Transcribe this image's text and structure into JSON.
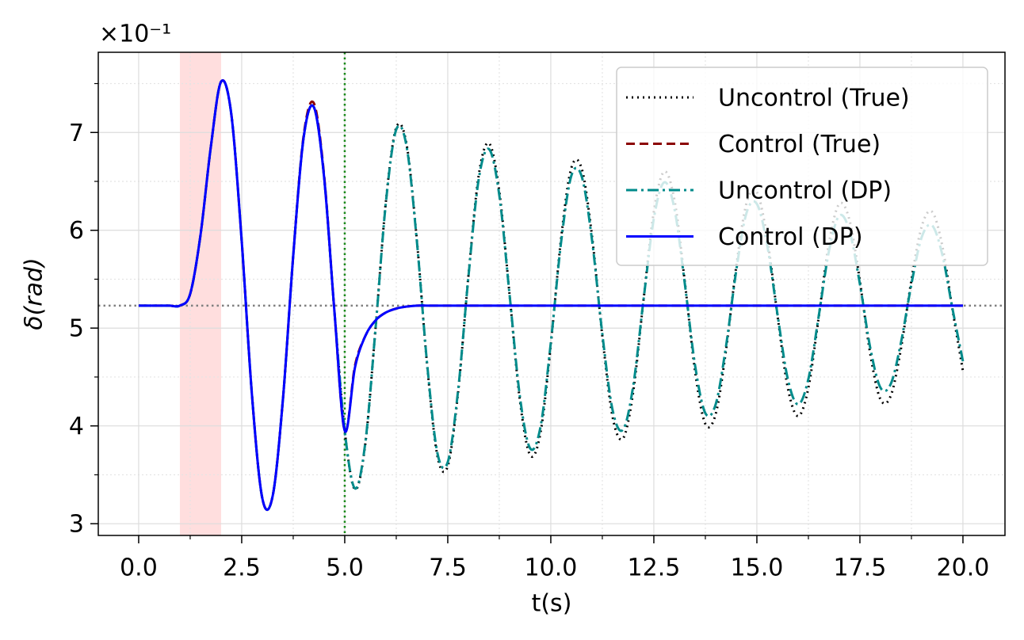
{
  "chart_data": {
    "type": "line",
    "offset_label": "×10⁻¹",
    "xlabel": "t(s)",
    "ylabel": "δ(rad)",
    "xlim": [
      -0.98,
      21.02
    ],
    "ylim": [
      2.88,
      7.82
    ],
    "xticks": [
      {
        "value": 0,
        "label": "0.0"
      },
      2.5,
      {
        "value": 5,
        "label": "5.0"
      },
      7.5,
      {
        "value": 10,
        "label": "10.0"
      },
      12.5,
      {
        "value": 15,
        "label": "15.0"
      },
      17.5,
      {
        "value": 20,
        "label": "20.0"
      }
    ],
    "yticks": [
      3,
      4,
      5,
      6,
      7
    ],
    "xminor": [
      1.25,
      3.75,
      6.25,
      8.75,
      11.25,
      13.75,
      16.25,
      18.75
    ],
    "yminor": [
      3.5,
      4.5,
      5.5,
      6.5,
      7.5
    ],
    "grid": true,
    "legend": "upper right",
    "spans": [
      {
        "range": [
          1,
          2
        ],
        "color": "#ffdede"
      }
    ],
    "vlines": [
      {
        "x": 5,
        "color": "#1a8a1a"
      }
    ],
    "hlines": [
      {
        "y": 5.23,
        "color": "#808080"
      }
    ],
    "x": [
      0,
      0.25,
      0.5,
      0.75,
      1,
      1.25,
      1.5,
      1.75,
      2,
      2.25,
      2.5,
      2.75,
      3,
      3.25,
      3.5,
      3.75,
      4,
      4.25,
      4.5,
      4.75,
      5,
      5.25,
      5.5,
      5.75,
      6,
      6.25,
      6.5,
      6.75,
      7,
      7.25,
      7.5,
      7.75,
      8,
      8.25,
      8.5,
      8.75,
      9,
      9.25,
      9.5,
      9.75,
      10,
      10.25,
      10.5,
      10.75,
      11,
      11.25,
      11.5,
      11.75,
      12,
      12.25,
      12.5,
      12.75,
      13,
      13.25,
      13.5,
      13.75,
      14,
      14.25,
      14.5,
      14.75,
      15,
      15.25,
      15.5,
      15.75,
      16,
      16.25,
      16.5,
      16.75,
      17,
      17.25,
      17.5,
      17.75,
      18,
      18.25,
      18.5,
      18.75,
      19,
      19.25,
      19.5,
      19.75,
      20
    ],
    "series": [
      {
        "name": "Uncontrol (True)",
        "color": "#000000",
        "linestyle": "dotted",
        "values": [
          5.23,
          5.23,
          5.23,
          5.23,
          5.23,
          5.35,
          5.95,
          6.85,
          7.52,
          7.18,
          5.89,
          4.31,
          3.26,
          3.28,
          4.27,
          5.74,
          6.94,
          7.26,
          6.54,
          5.17,
          3.95,
          3.35,
          3.82,
          5.01,
          6.3,
          7.05,
          6.88,
          5.9,
          4.62,
          3.69,
          3.59,
          4.34,
          5.53,
          6.56,
          6.89,
          6.4,
          5.34,
          4.26,
          3.7,
          3.93,
          4.83,
          5.92,
          6.64,
          6.63,
          5.94,
          4.92,
          4.09,
          3.87,
          4.35,
          5.29,
          6.19,
          6.6,
          6.31,
          5.48,
          4.56,
          4.02,
          4.12,
          4.77,
          5.63,
          6.28,
          6.39,
          5.92,
          5.13,
          4.39,
          4.1,
          4.39,
          5.11,
          5.87,
          6.27,
          6.1,
          5.48,
          4.74,
          4.27,
          4.31,
          4.8,
          5.49,
          6.04,
          6.19,
          5.84,
          5.18,
          4.56
        ]
      },
      {
        "name": "Control (True)",
        "color": "#8b0000",
        "linestyle": "dashed",
        "values": [
          5.23,
          5.23,
          5.23,
          5.23,
          5.23,
          5.35,
          5.95,
          6.85,
          7.52,
          7.18,
          5.89,
          4.31,
          3.26,
          3.28,
          4.27,
          5.74,
          6.96,
          7.3,
          6.56,
          5.17,
          3.95,
          4.62,
          4.92,
          5.08,
          5.16,
          5.2,
          5.22,
          5.23,
          5.23,
          5.23,
          5.23,
          5.23,
          5.23,
          5.23,
          5.23,
          5.23,
          5.23,
          5.23,
          5.23,
          5.23,
          5.23,
          5.23,
          5.23,
          5.23,
          5.23,
          5.23,
          5.23,
          5.23,
          5.23,
          5.23,
          5.23,
          5.23,
          5.23,
          5.23,
          5.23,
          5.23,
          5.23,
          5.23,
          5.23,
          5.23,
          5.23,
          5.23,
          5.23,
          5.23,
          5.23,
          5.23,
          5.23,
          5.23,
          5.23,
          5.23,
          5.23,
          5.23,
          5.23,
          5.23,
          5.23,
          5.23,
          5.23,
          5.23,
          5.23,
          5.23,
          5.23
        ]
      },
      {
        "name": "Uncontrol (DP)",
        "color": "#008b8b",
        "linestyle": "dashdot",
        "values": [
          5.23,
          5.23,
          5.23,
          5.23,
          5.23,
          5.35,
          5.95,
          6.85,
          7.52,
          7.18,
          5.89,
          4.31,
          3.26,
          3.28,
          4.27,
          5.74,
          6.94,
          7.26,
          6.54,
          5.17,
          3.95,
          3.36,
          3.83,
          5.01,
          6.29,
          7.03,
          6.86,
          5.89,
          4.63,
          3.72,
          3.63,
          4.36,
          5.52,
          6.52,
          6.83,
          6.36,
          5.34,
          4.3,
          3.77,
          3.99,
          4.85,
          5.88,
          6.56,
          6.55,
          5.9,
          4.94,
          4.16,
          3.96,
          4.41,
          5.29,
          6.12,
          6.49,
          6.22,
          5.46,
          4.62,
          4.13,
          4.22,
          4.81,
          5.59,
          6.18,
          6.27,
          5.85,
          5.14,
          4.48,
          4.22,
          4.48,
          5.12,
          5.79,
          6.15,
          5.99,
          5.45,
          4.8,
          4.39,
          4.43,
          4.86,
          5.45,
          5.93,
          6.05,
          5.75,
          5.19,
          4.66
        ]
      },
      {
        "name": "Control (DP)",
        "color": "#0000ff",
        "linestyle": "solid",
        "values": [
          5.23,
          5.23,
          5.23,
          5.23,
          5.23,
          5.35,
          5.95,
          6.85,
          7.52,
          7.18,
          5.89,
          4.31,
          3.26,
          3.28,
          4.27,
          5.74,
          6.94,
          7.26,
          6.54,
          5.17,
          3.95,
          4.6,
          4.92,
          5.08,
          5.16,
          5.2,
          5.22,
          5.23,
          5.23,
          5.23,
          5.23,
          5.23,
          5.23,
          5.23,
          5.23,
          5.23,
          5.23,
          5.23,
          5.23,
          5.23,
          5.23,
          5.23,
          5.23,
          5.23,
          5.23,
          5.23,
          5.23,
          5.23,
          5.23,
          5.23,
          5.23,
          5.23,
          5.23,
          5.23,
          5.23,
          5.23,
          5.23,
          5.23,
          5.23,
          5.23,
          5.23,
          5.23,
          5.23,
          5.23,
          5.23,
          5.23,
          5.23,
          5.23,
          5.23,
          5.23,
          5.23,
          5.23,
          5.23,
          5.23,
          5.23,
          5.23,
          5.23,
          5.23,
          5.23,
          5.23,
          5.23
        ]
      }
    ]
  }
}
